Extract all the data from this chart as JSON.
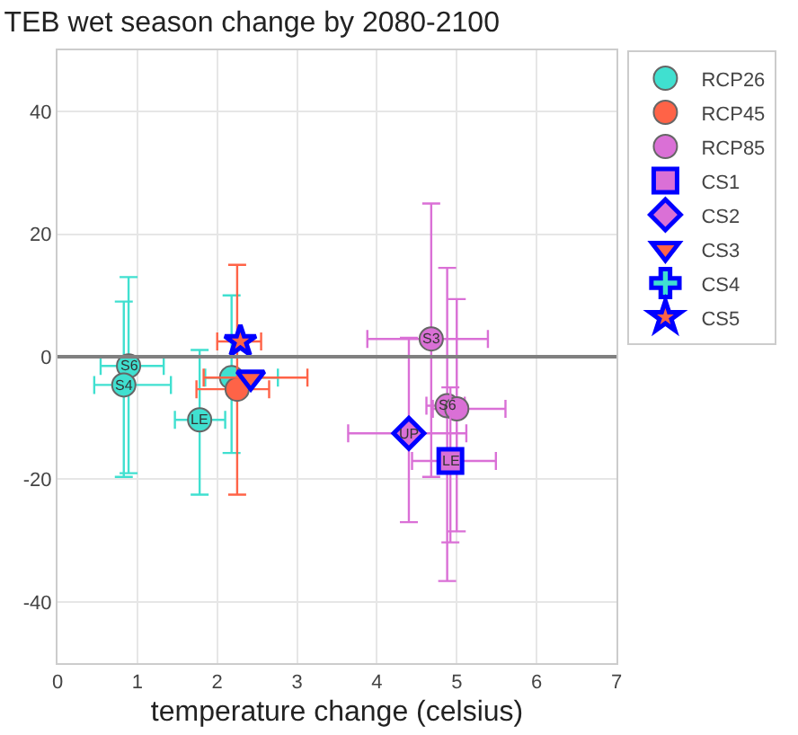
{
  "chart_data": {
    "type": "scatter",
    "title": "TEB wet season change by 2080-2100",
    "xlabel": "temperature change (celsius)",
    "xlim": [
      0,
      7
    ],
    "xticks": [
      0,
      1,
      2,
      3,
      4,
      5,
      6,
      7
    ],
    "ylim": [
      -50,
      50
    ],
    "yticks": [
      -40,
      -20,
      0,
      20,
      40
    ],
    "grid": true,
    "legend": "top right",
    "ref_lines": [
      {
        "axis": "y",
        "value": 0,
        "color": "#808080"
      }
    ],
    "series": [
      {
        "name": "RCP26",
        "color": "#40e0d0",
        "marker": "circle",
        "x": [
          0.89,
          0.83,
          1.78,
          2.18
        ],
        "values": [
          -1.5,
          -4.6,
          -10.3,
          -3.4
        ],
        "errors": [
          [
            -19,
            13
          ],
          [
            -19.6,
            9
          ],
          [
            -22.5,
            1.1
          ],
          [
            -15.7,
            10
          ]
        ],
        "xerrors": [
          [
            0.54,
            1.33
          ],
          [
            0.46,
            1.42
          ],
          [
            1.47,
            2.1
          ],
          [
            1.85,
            2.76
          ]
        ]
      },
      {
        "name": "RCP45",
        "color": "#ff6347",
        "marker": "circle",
        "x": [
          2.25
        ],
        "values": [
          -5.3
        ],
        "errors": [
          [
            -22.5,
            15
          ]
        ],
        "xerrors": [
          [
            1.74,
            2.65
          ]
        ]
      },
      {
        "name": "RCP85",
        "color": "#da70d6",
        "marker": "circle",
        "x": [
          4.68,
          4.88,
          5.0
        ],
        "values": [
          2.9,
          -8,
          -8.5
        ],
        "errors": [
          [
            -19.6,
            25
          ],
          [
            -36.6,
            14.5
          ],
          [
            -28.5,
            9.4
          ]
        ],
        "xerrors": [
          [
            3.88,
            5.39
          ],
          [
            4.62,
            5.1
          ],
          [
            4.7,
            5.61
          ]
        ]
      },
      {
        "name": "CS1",
        "color": "#0000ff",
        "colors": [
          "#da70d6"
        ],
        "marker": "square",
        "x": [
          4.92
        ],
        "values": [
          -17
        ],
        "errors": [
          [
            -30.3,
            -5
          ]
        ],
        "xerrors": [
          [
            4.44,
            5.49
          ]
        ]
      },
      {
        "name": "CS2",
        "color": "#0000ff",
        "colors": [
          "#da70d6"
        ],
        "marker": "diamond",
        "x": [
          4.4
        ],
        "values": [
          -12.5
        ],
        "errors": [
          [
            -27,
            3.1
          ]
        ],
        "xerrors": [
          [
            3.64,
            5.12
          ]
        ]
      },
      {
        "name": "CS3",
        "color": "#0000ff",
        "colors": [
          "#ff6347"
        ],
        "marker": "triangle",
        "x": [
          2.42
        ],
        "values": [
          -3.4
        ],
        "errors": [
          null
        ],
        "xerrors": [
          [
            1.83,
            3.13
          ]
        ]
      },
      {
        "name": "CS4",
        "color": "#0000ff",
        "colors": [
          "#40e0d0"
        ],
        "marker": "cross",
        "values": [
          null
        ]
      },
      {
        "name": "CS5",
        "color": "#0000ff",
        "colors": [
          "#ff6347"
        ],
        "marker": "star",
        "x": [
          2.29
        ],
        "values": [
          2.5
        ],
        "errors": [
          null
        ],
        "xerrors": [
          [
            2.0,
            2.55
          ]
        ]
      }
    ],
    "annotations": [
      {
        "text": "S6",
        "x": 0.89,
        "y": -1.5
      },
      {
        "text": "S4",
        "x": 0.83,
        "y": -4.6
      },
      {
        "text": "LE",
        "x": 1.78,
        "y": -10.3
      },
      {
        "text": "S3",
        "x": 4.68,
        "y": 2.9
      },
      {
        "text": "S6",
        "x": 4.88,
        "y": -8
      },
      {
        "text": "UP",
        "x": 4.4,
        "y": -12.5
      },
      {
        "text": "LE",
        "x": 4.92,
        "y": -17
      }
    ]
  }
}
